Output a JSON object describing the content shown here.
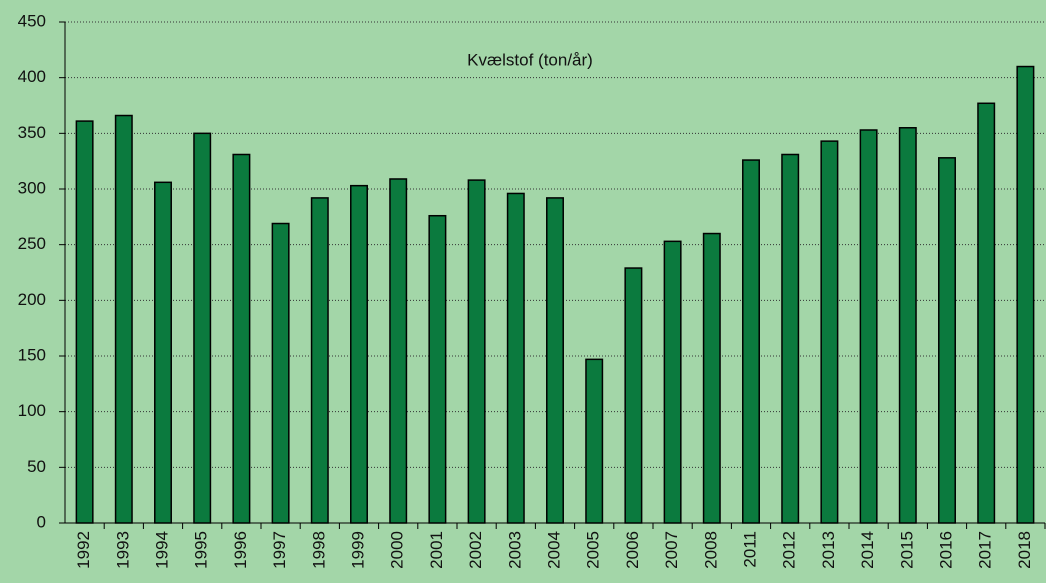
{
  "chart_data": {
    "type": "bar",
    "title": "Kvælstof (ton/år)",
    "categories": [
      "1992",
      "1993",
      "1994",
      "1995",
      "1996",
      "1997",
      "1998",
      "1999",
      "2000",
      "2001",
      "2002",
      "2003",
      "2004",
      "2005",
      "2006",
      "2007",
      "2008",
      "2011",
      "2012",
      "2013",
      "2014",
      "2015",
      "2016",
      "2017",
      "2018"
    ],
    "values": [
      361,
      366,
      306,
      350,
      331,
      269,
      292,
      303,
      309,
      276,
      308,
      296,
      292,
      147,
      229,
      253,
      260,
      326,
      331,
      343,
      353,
      355,
      328,
      377,
      410
    ],
    "color": "#0b7a3e",
    "ylim": [
      0,
      450
    ],
    "yticks": [
      0,
      50,
      100,
      150,
      200,
      250,
      300,
      350,
      400,
      450
    ],
    "grid": true
  }
}
